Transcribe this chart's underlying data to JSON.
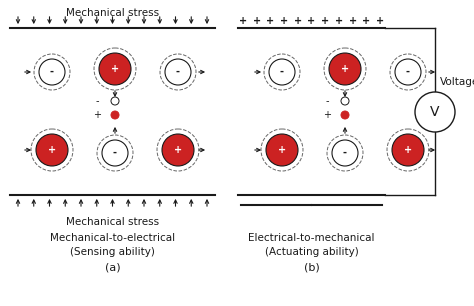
{
  "fig_width": 4.74,
  "fig_height": 3.06,
  "dpi": 100,
  "bg_color": "#ffffff",
  "red_fill": "#cc2222",
  "white_fill": "#ffffff",
  "dark_color": "#1a1a1a",
  "label_a": "(a)",
  "label_b": "(b)",
  "text_a1": "Mechanical-to-electrical",
  "text_a2": "(Sensing ability)",
  "text_b1": "Electrical-to-mechanical",
  "text_b2": "(Actuating ability)",
  "mech_stress": "Mechanical stress",
  "voltage_text": "Voltage",
  "v_text": "V"
}
